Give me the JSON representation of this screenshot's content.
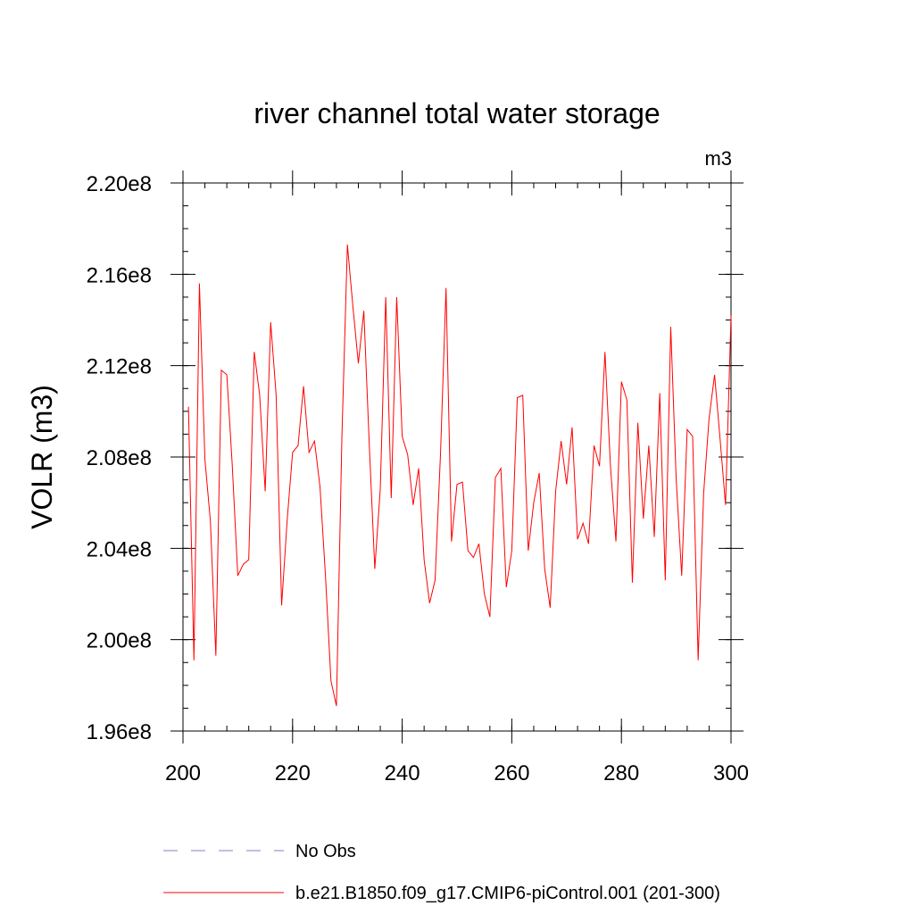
{
  "chart_data": {
    "type": "line",
    "title": "river channel total water storage",
    "units_label": "m3",
    "xlabel": "",
    "ylabel": "VOLR  (m3)",
    "xlim": [
      200,
      300
    ],
    "ylim": [
      196000000.0,
      220000000.0
    ],
    "x_ticks": [
      200,
      220,
      240,
      260,
      280,
      300
    ],
    "x_tick_labels": [
      "200",
      "220",
      "240",
      "260",
      "280",
      "300"
    ],
    "y_ticks": [
      196000000.0,
      200000000.0,
      204000000.0,
      208000000.0,
      212000000.0,
      216000000.0,
      220000000.0
    ],
    "y_tick_labels": [
      "1.96e8",
      "2.00e8",
      "2.04e8",
      "2.08e8",
      "2.12e8",
      "2.16e8",
      "2.20e8"
    ],
    "series": [
      {
        "name": "b.e21.B1850.f09_g17.CMIP6-piControl.001 (201-300)",
        "color": "#ff0000",
        "style": "solid",
        "x": [
          201,
          202,
          203,
          204,
          205,
          206,
          207,
          208,
          209,
          210,
          211,
          212,
          213,
          214,
          215,
          216,
          217,
          218,
          219,
          220,
          221,
          222,
          223,
          224,
          225,
          226,
          227,
          228,
          229,
          230,
          231,
          232,
          233,
          234,
          235,
          236,
          237,
          238,
          239,
          240,
          241,
          242,
          243,
          244,
          245,
          246,
          247,
          248,
          249,
          250,
          251,
          252,
          253,
          254,
          255,
          256,
          257,
          258,
          259,
          260,
          261,
          262,
          263,
          264,
          265,
          266,
          267,
          268,
          269,
          270,
          271,
          272,
          273,
          274,
          275,
          276,
          277,
          278,
          279,
          280,
          281,
          282,
          283,
          284,
          285,
          286,
          287,
          288,
          289,
          290,
          291,
          292,
          293,
          294,
          295,
          296,
          297,
          298,
          299,
          300
        ],
        "values": [
          210200000.0,
          199100000.0,
          215600000.0,
          207900000.0,
          205200000.0,
          199300000.0,
          211800000.0,
          211600000.0,
          207600000.0,
          202800000.0,
          203300000.0,
          203500000.0,
          212600000.0,
          210700000.0,
          206500000.0,
          213900000.0,
          210700000.0,
          201500000.0,
          205200000.0,
          208200000.0,
          208500000.0,
          211100000.0,
          208200000.0,
          208700000.0,
          206700000.0,
          202800000.0,
          198200000.0,
          197100000.0,
          208900000.0,
          217300000.0,
          214600000.0,
          212100000.0,
          214400000.0,
          208500000.0,
          203100000.0,
          206600000.0,
          215000000.0,
          206200000.0,
          215000000.0,
          208900000.0,
          208100000.0,
          205900000.0,
          207500000.0,
          203500000.0,
          201600000.0,
          202600000.0,
          208200000.0,
          215400000.0,
          204300000.0,
          206800000.0,
          206900000.0,
          203900000.0,
          203600000.0,
          204200000.0,
          202000000.0,
          201000000.0,
          207100000.0,
          207500000.0,
          202300000.0,
          203900000.0,
          210600000.0,
          210700000.0,
          203900000.0,
          206000000.0,
          207300000.0,
          203100000.0,
          201400000.0,
          206500000.0,
          208700000.0,
          206800000.0,
          209300000.0,
          204400000.0,
          205100000.0,
          204200000.0,
          208500000.0,
          207600000.0,
          212600000.0,
          207600000.0,
          204300000.0,
          211300000.0,
          210500000.0,
          202500000.0,
          209500000.0,
          205300000.0,
          208500000.0,
          204500000.0,
          210800000.0,
          202600000.0,
          213700000.0,
          207000000.0,
          202800000.0,
          209200000.0,
          208900000.0,
          199100000.0,
          206400000.0,
          209700000.0,
          211600000.0,
          208800000.0,
          205900000.0,
          214200000.0
        ]
      }
    ],
    "legend": [
      {
        "label": "No Obs",
        "color": "#8080c0",
        "style": "dashed"
      },
      {
        "label": "b.e21.B1850.f09_g17.CMIP6-piControl.001 (201-300)",
        "color": "#ff0000",
        "style": "solid"
      }
    ]
  }
}
